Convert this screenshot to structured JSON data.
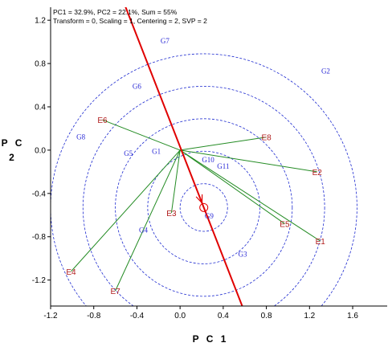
{
  "header": {
    "line1": "PC1 = 32.9%, PC2 = 22.1%, Sum = 55%",
    "line2": "Transform = 0, Scaling = 1, Centering = 2, SVP = 2"
  },
  "colors": {
    "genotype": "#2b2bd6",
    "environment": "#b01c1c",
    "vector": "#238b23",
    "aea": "#e00000",
    "circle": "#1e2bd0"
  },
  "chart_data": {
    "type": "scatter",
    "title": "",
    "xlabel": "P C 1",
    "ylabel": "P C 2",
    "xlim": [
      -1.2,
      1.92
    ],
    "ylim": [
      -1.44,
      1.32
    ],
    "xticks": [
      -1.2,
      -0.8,
      -0.4,
      0.0,
      0.4,
      0.8,
      1.2,
      1.6
    ],
    "yticks": [
      1.2,
      0.8,
      0.4,
      0.0,
      -0.4,
      -0.8,
      -1.2
    ],
    "tick_labels_x": [
      "-1.2",
      "-0.8",
      "-0.4",
      "0.0",
      "0.4",
      "0.8",
      "1.2",
      "1.6"
    ],
    "tick_labels_y": [
      "1.2",
      "0.8",
      "0.4",
      "0.0",
      "-0.4",
      "-0.8",
      "-1.2"
    ],
    "origin": [
      0.0,
      0.0
    ],
    "genotypes": [
      {
        "name": "G1",
        "x": -0.22,
        "y": -0.01
      },
      {
        "name": "G2",
        "x": 1.35,
        "y": 0.73
      },
      {
        "name": "G3",
        "x": 0.58,
        "y": -0.96
      },
      {
        "name": "G4",
        "x": -0.34,
        "y": -0.74
      },
      {
        "name": "G5",
        "x": -0.48,
        "y": -0.03
      },
      {
        "name": "G6",
        "x": -0.4,
        "y": 0.59
      },
      {
        "name": "G7",
        "x": -0.14,
        "y": 1.01
      },
      {
        "name": "G8",
        "x": -0.92,
        "y": 0.12
      },
      {
        "name": "G9",
        "x": 0.27,
        "y": -0.61
      },
      {
        "name": "G10",
        "x": 0.26,
        "y": -0.09
      },
      {
        "name": "G11",
        "x": 0.4,
        "y": -0.15
      }
    ],
    "environments": [
      {
        "name": "E1",
        "x": 1.3,
        "y": -0.84
      },
      {
        "name": "E2",
        "x": 1.27,
        "y": -0.2
      },
      {
        "name": "E3",
        "x": -0.08,
        "y": -0.58
      },
      {
        "name": "E4",
        "x": -1.01,
        "y": -1.12
      },
      {
        "name": "E5",
        "x": 0.97,
        "y": -0.68
      },
      {
        "name": "E6",
        "x": -0.72,
        "y": 0.28
      },
      {
        "name": "E7",
        "x": -0.6,
        "y": -1.3
      },
      {
        "name": "E8",
        "x": 0.8,
        "y": 0.12
      }
    ],
    "aea_line": {
      "x1": -0.52,
      "y1": 1.36,
      "x2": 0.58,
      "y2": -1.45
    },
    "aea_point": {
      "x": 0.22,
      "y": -0.53
    },
    "circles": [
      0.22,
      0.52,
      0.82,
      1.12,
      1.42
    ]
  }
}
